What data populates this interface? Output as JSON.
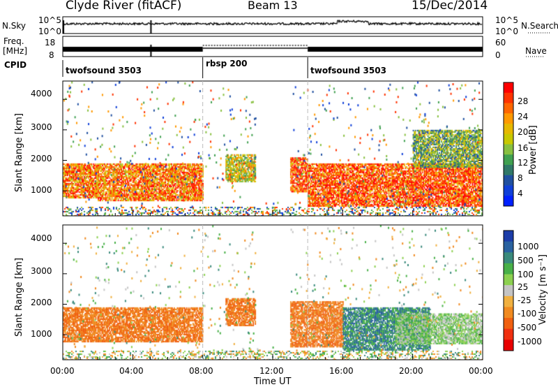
{
  "header": {
    "site": "Clyde River (fitACF)",
    "beam": "Beam 13",
    "date": "15/Dec/2014"
  },
  "labels": {
    "nsky": "N.Sky",
    "nsearch": "N.Search",
    "freq": "Freq.",
    "mhz": "[MHz]",
    "nave": "Nave",
    "cpid": "CPID",
    "time_axis": "Time UT",
    "slant_range": "Slant Range [km]",
    "power_bar": "Power [dB]",
    "velocity_bar": "Velocity  [m s⁻¹]"
  },
  "ticks": {
    "nsky": [
      "10^5",
      "10^0"
    ],
    "nsearch": [
      "10^5",
      "10^0"
    ],
    "freq": [
      "18",
      "8"
    ],
    "nave": [
      "60",
      "0"
    ],
    "range": [
      "4000",
      "3000",
      "2000",
      "1000"
    ],
    "time": [
      "00:00",
      "04:00",
      "08:00",
      "12:00",
      "16:00",
      "20:00",
      "00:00"
    ]
  },
  "cpid": [
    {
      "label": "twofsound 3503",
      "start_hour": 0,
      "end_hour": 8
    },
    {
      "label": "rbsp 200",
      "start_hour": 8,
      "end_hour": 14
    },
    {
      "label": "twofsound 3503",
      "start_hour": 14,
      "end_hour": 24
    }
  ],
  "power_scale": {
    "ticks": [
      "28",
      "24",
      "20",
      "16",
      "12",
      "8",
      "4"
    ],
    "colors": [
      "#ff0000",
      "#ff3300",
      "#ff6600",
      "#ff9900",
      "#e6b800",
      "#c8c800",
      "#88c040",
      "#40a050",
      "#307868",
      "#2050a0",
      "#1040d8",
      "#0020ff"
    ]
  },
  "velocity_scale": {
    "ticks": [
      "1000",
      "500",
      "100",
      "25",
      "-25",
      "-100",
      "-500",
      "-1000"
    ],
    "colors": [
      "#1c3ca8",
      "#2a62a0",
      "#3a8a7c",
      "#48b048",
      "#8cd050",
      "#c4c4c4",
      "#f0b040",
      "#f08a20",
      "#f06010",
      "#f03010",
      "#e80000"
    ]
  },
  "chart_data": [
    {
      "type": "heatmap",
      "title": "Power",
      "xlabel": "Time UT",
      "ylabel": "Slant Range [km]",
      "xlim": [
        0,
        24
      ],
      "ylim": [
        180,
        4600
      ],
      "colorbar": {
        "label": "Power [dB]",
        "range": [
          0,
          30
        ],
        "ticks": [
          4,
          8,
          12,
          16,
          20,
          24,
          28
        ]
      },
      "echo_regions": [
        {
          "hours": [
            0,
            2
          ],
          "range_km": [
            800,
            1900
          ],
          "power_db": 24
        },
        {
          "hours": [
            2,
            8
          ],
          "range_km": [
            700,
            1900
          ],
          "power_db": 24
        },
        {
          "hours": [
            9.3,
            11
          ],
          "range_km": [
            1300,
            2200
          ],
          "power_db": 18
        },
        {
          "hours": [
            13,
            14
          ],
          "range_km": [
            1000,
            2100
          ],
          "power_db": 26
        },
        {
          "hours": [
            14,
            24
          ],
          "range_km": [
            500,
            1900
          ],
          "power_db": 26
        },
        {
          "hours": [
            20,
            24
          ],
          "range_km": [
            1800,
            3000
          ],
          "power_db": 14
        }
      ]
    },
    {
      "type": "heatmap",
      "title": "Velocity",
      "xlabel": "Time UT",
      "ylabel": "Slant Range [km]",
      "xlim": [
        0,
        24
      ],
      "ylim": [
        180,
        4600
      ],
      "colorbar": {
        "label": "Velocity [m s^-1]",
        "ticks": [
          1000,
          500,
          100,
          25,
          -25,
          -100,
          -500,
          -1000
        ]
      },
      "echo_regions": [
        {
          "hours": [
            0,
            8
          ],
          "range_km": [
            800,
            1900
          ],
          "velocity_ms": -300
        },
        {
          "hours": [
            9.3,
            11
          ],
          "range_km": [
            1300,
            2200
          ],
          "velocity_ms": -300
        },
        {
          "hours": [
            13,
            16
          ],
          "range_km": [
            600,
            2100
          ],
          "velocity_ms": -300
        },
        {
          "hours": [
            16,
            21
          ],
          "range_km": [
            500,
            1900
          ],
          "velocity_ms": 300
        },
        {
          "hours": [
            19,
            24
          ],
          "range_km": [
            700,
            1700
          ],
          "velocity_ms": 50
        }
      ]
    }
  ]
}
